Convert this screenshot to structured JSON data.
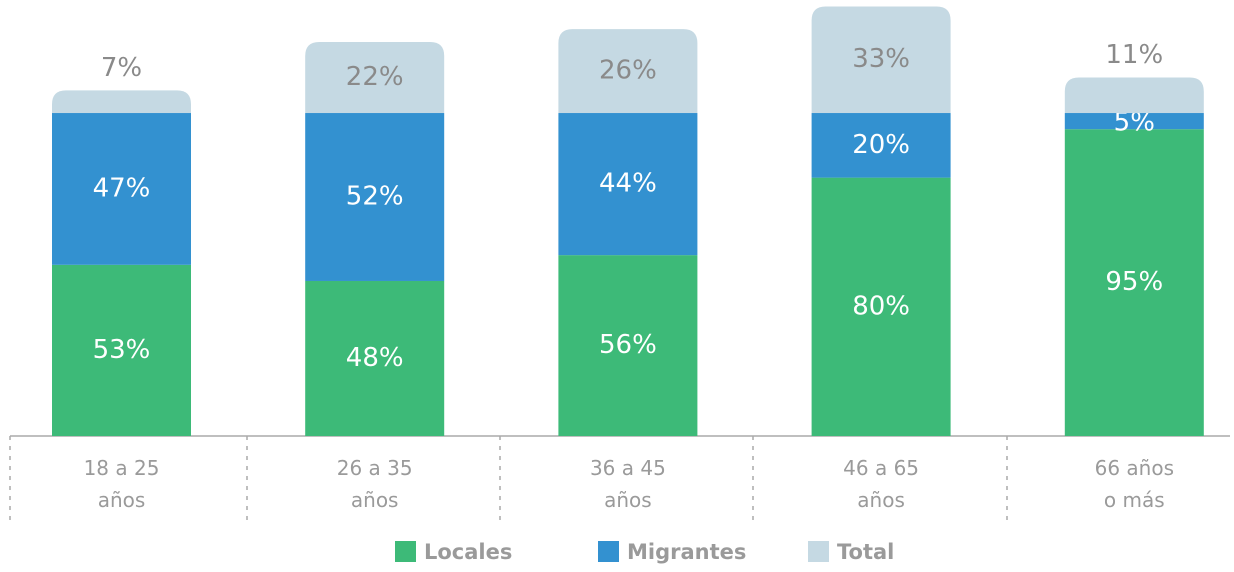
{
  "chart_data": {
    "type": "stacked-bar",
    "categories": [
      "18 a 25\naños",
      "26 a 35\naños",
      "36 a 45\naños",
      "46 a 65\naños",
      "66 años\no más"
    ],
    "series": [
      {
        "name": "Locales",
        "color": "#3dba78",
        "values": [
          53,
          48,
          56,
          80,
          95
        ],
        "value_labels": [
          "53%",
          "48%",
          "56%",
          "80%",
          "95%"
        ]
      },
      {
        "name": "Migrantes",
        "color": "#3391d0",
        "values": [
          47,
          52,
          44,
          20,
          5
        ],
        "value_labels": [
          "47%",
          "52%",
          "44%",
          "20%",
          "5%"
        ]
      },
      {
        "name": "Total",
        "color": "#c5d9e3",
        "values": [
          7,
          22,
          26,
          33,
          11
        ],
        "value_labels": [
          "7%",
          "22%",
          "26%",
          "33%",
          "11%"
        ]
      }
    ],
    "ylim": [
      0,
      135
    ],
    "legend": "bottom"
  }
}
